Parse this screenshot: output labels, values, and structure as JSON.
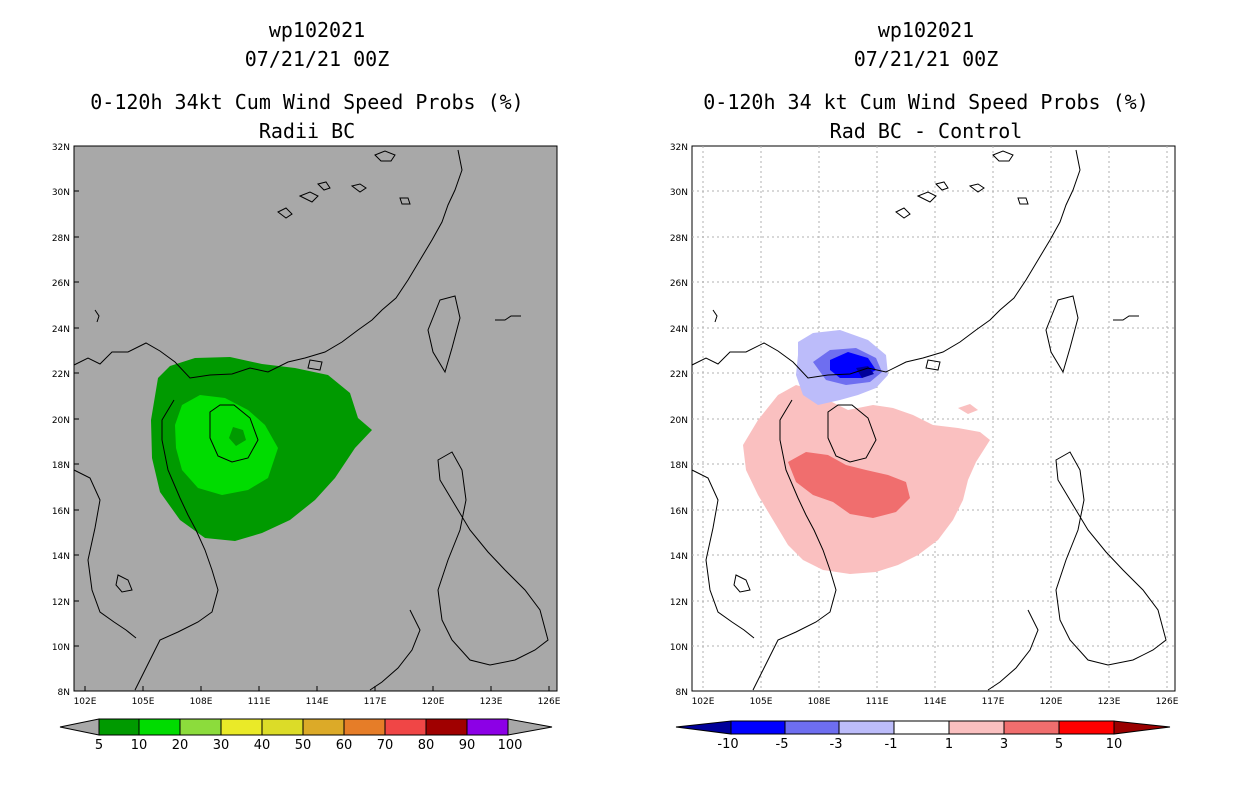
{
  "left": {
    "title_line1": "wp102021",
    "title_line2": "07/21/21 00Z",
    "title_line3": "0-120h 34kt Cum Wind Speed Probs (%)",
    "title_line4": "Radii BC",
    "background": "#a8a8a8"
  },
  "right": {
    "title_line1": "wp102021",
    "title_line2": "07/21/21 00Z",
    "title_line3": "0-120h 34 kt Cum Wind Speed Probs (%)",
    "title_line4": "Rad BC - Control",
    "background": "#ffffff"
  },
  "axes": {
    "lat_labels": [
      "32N",
      "30N",
      "28N",
      "26N",
      "24N",
      "22N",
      "20N",
      "18N",
      "16N",
      "14N",
      "12N",
      "10N",
      "8N"
    ],
    "lon_labels": [
      "102E",
      "105E",
      "108E",
      "111E",
      "114E",
      "117E",
      "120E",
      "123E",
      "126E"
    ],
    "lat_range": [
      8,
      32
    ],
    "lon_range": [
      101.5,
      126.5
    ]
  },
  "legend_left": {
    "labels": [
      "5",
      "10",
      "20",
      "30",
      "40",
      "50",
      "60",
      "70",
      "80",
      "90",
      "100"
    ],
    "colors": [
      "#009a00",
      "#00dc00",
      "#8cdc3c",
      "#eaea28",
      "#dcdc28",
      "#dcaa28",
      "#e67d28",
      "#f04646",
      "#a00000",
      "#820000",
      "#8c00e6"
    ]
  },
  "legend_right": {
    "labels": [
      "-10",
      "-5",
      "-3",
      "-1",
      "1",
      "3",
      "5",
      "10"
    ],
    "colors": [
      "#00009a",
      "#0000ff",
      "#6e6ef0",
      "#bcbcfa",
      "#ffffff",
      "#fac0c0",
      "#f06e6e",
      "#ff0000",
      "#9a0000"
    ]
  }
}
